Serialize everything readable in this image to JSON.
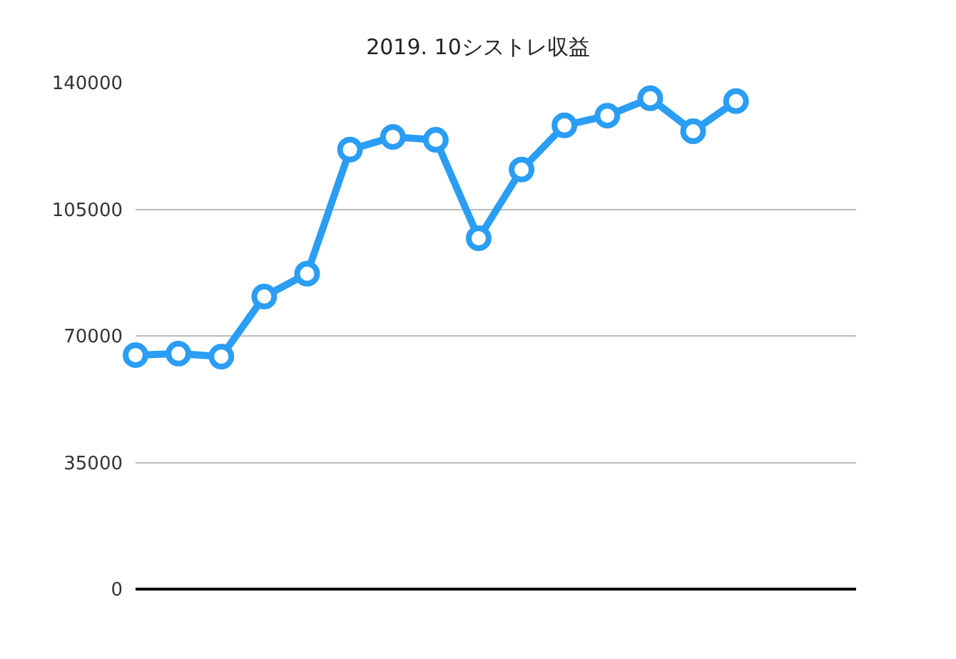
{
  "chart_data": {
    "type": "line",
    "title": "2019. 10シストレ収益",
    "categories": [
      null,
      null,
      null,
      null,
      null,
      null,
      null,
      null,
      null,
      null,
      null,
      null,
      null,
      null,
      null,
      null,
      null
    ],
    "series": [
      {
        "color": "#2a9df4",
        "values": [
          64700,
          65100,
          64300,
          80900,
          87200,
          121500,
          125000,
          124200,
          97000,
          116000,
          128200,
          130900,
          135700,
          126600,
          134900,
          null,
          null
        ]
      }
    ],
    "ylim": [
      0,
      140000
    ],
    "yticks": [
      0,
      35000,
      70000,
      105000,
      140000
    ],
    "grid": "y",
    "marker": "circle",
    "line_style": "solid",
    "tick_labels": "y"
  }
}
